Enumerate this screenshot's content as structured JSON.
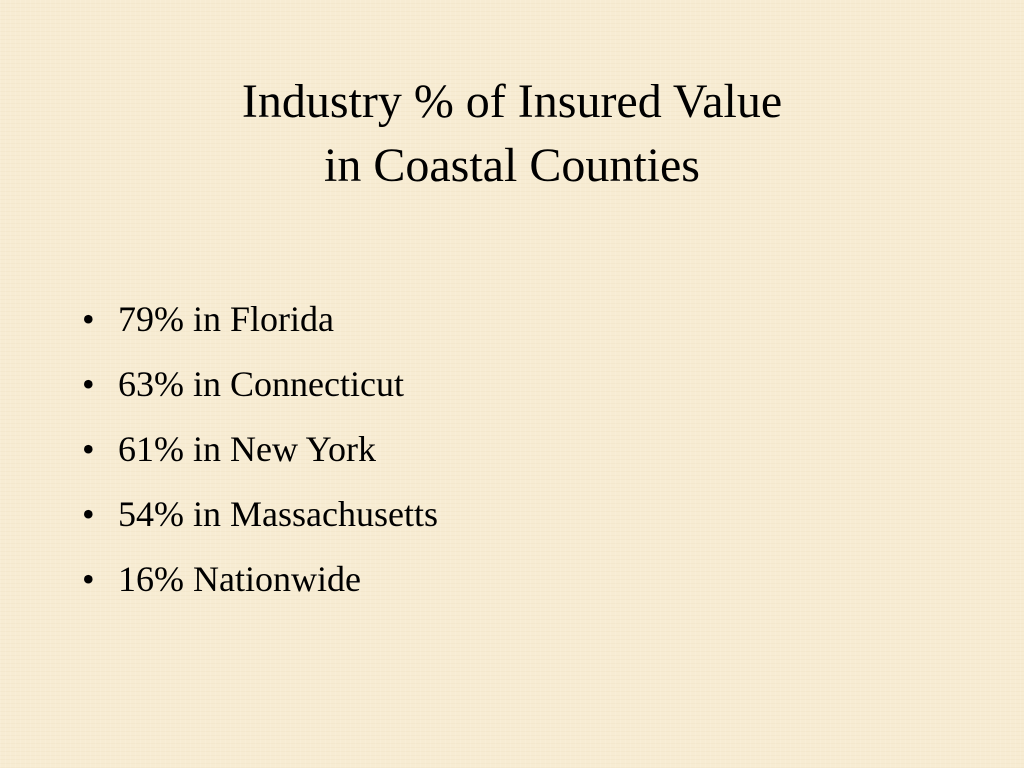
{
  "slide": {
    "title_line_1": "Industry % of Insured Value",
    "title_line_2": "in Coastal Counties",
    "bullet_glyph": "•",
    "bullets": [
      "79% in Florida",
      "63% in Connecticut",
      "61% in New York",
      "54% in Massachusetts",
      "16% Nationwide"
    ]
  },
  "colors": {
    "background": "#f7ecd3",
    "text": "#000000"
  }
}
